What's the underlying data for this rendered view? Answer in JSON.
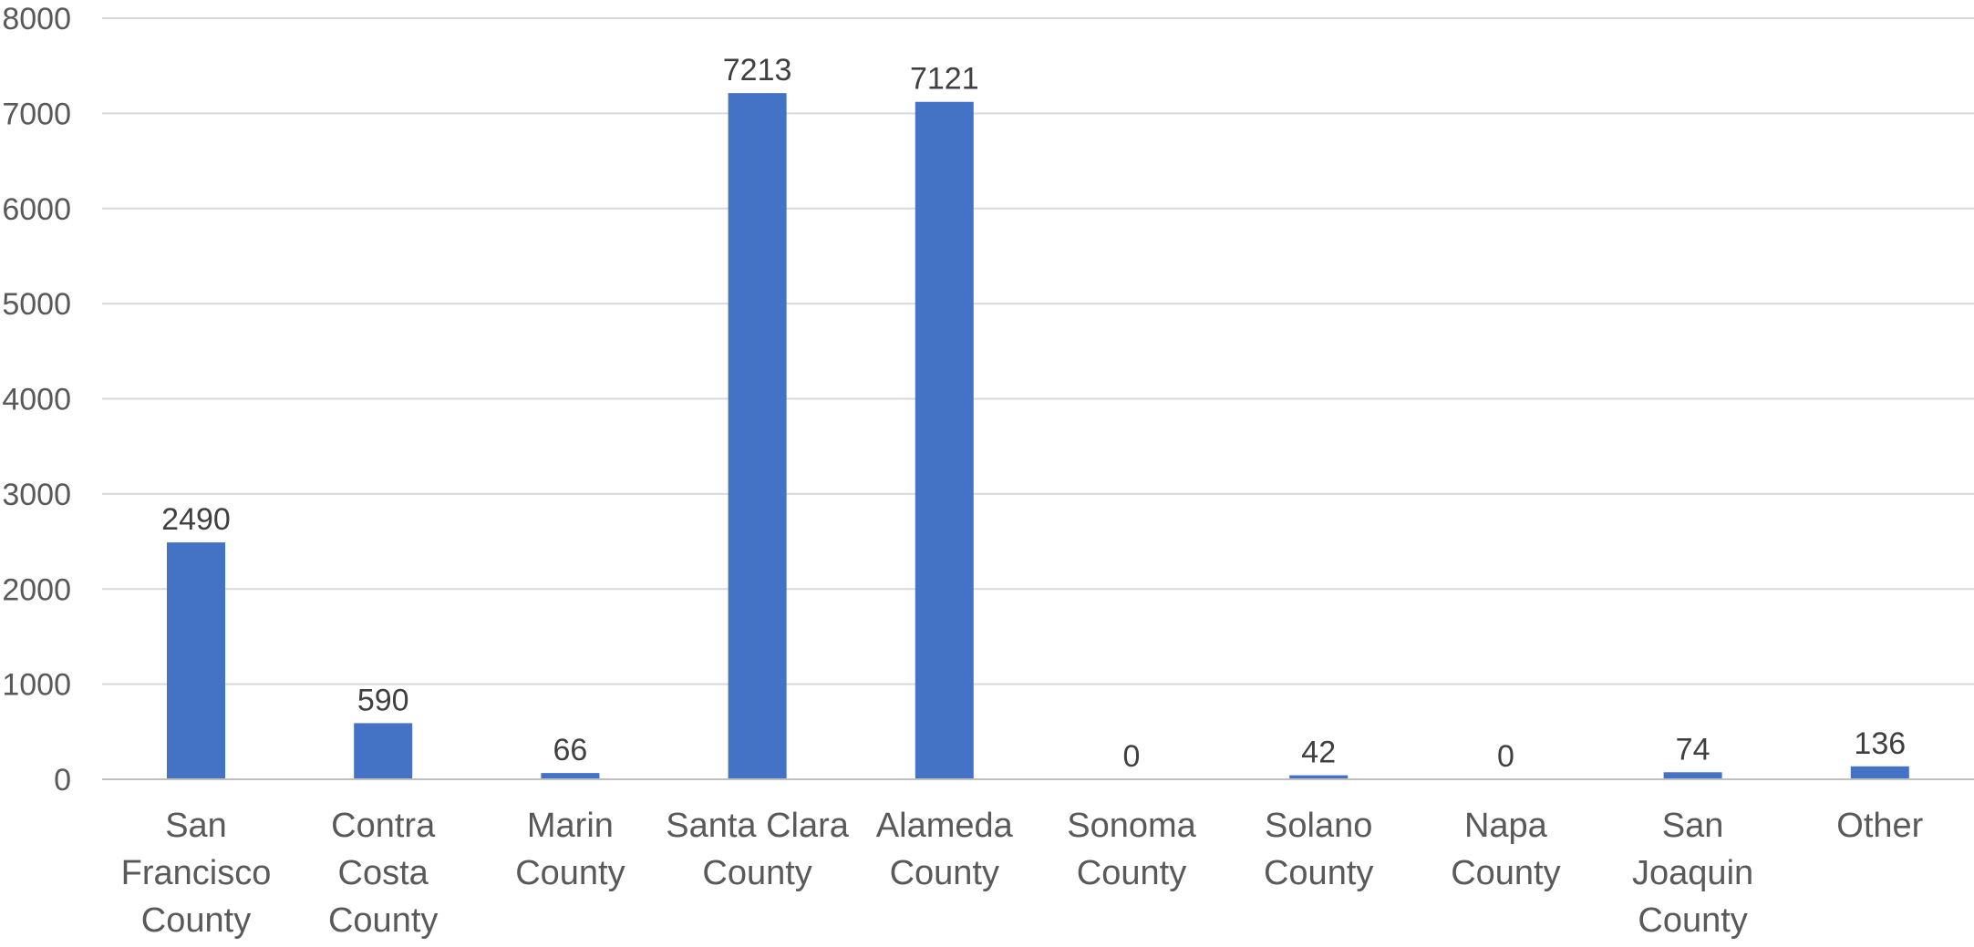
{
  "chart_data": {
    "type": "bar",
    "categories": [
      "San Francisco County",
      "Contra Costa County",
      "Marin County",
      "Santa Clara County",
      "Alameda County",
      "Sonoma County",
      "Solano County",
      "Napa County",
      "San Joaquin County",
      "Other"
    ],
    "category_lines": [
      [
        "San",
        "Francisco",
        "County"
      ],
      [
        "Contra",
        "Costa",
        "County"
      ],
      [
        "Marin",
        "County"
      ],
      [
        "Santa Clara",
        "County"
      ],
      [
        "Alameda",
        "County"
      ],
      [
        "Sonoma",
        "County"
      ],
      [
        "Solano",
        "County"
      ],
      [
        "Napa",
        "County"
      ],
      [
        "San",
        "Joaquin",
        "County"
      ],
      [
        "Other"
      ]
    ],
    "values": [
      2490,
      590,
      66,
      7213,
      7121,
      0,
      42,
      0,
      74,
      136
    ],
    "data_labels": [
      "2490",
      "590",
      "66",
      "7213",
      "7121",
      "0",
      "42",
      "0",
      "74",
      "136"
    ],
    "ylim": [
      0,
      8000
    ],
    "yticks": [
      0,
      1000,
      2000,
      3000,
      4000,
      5000,
      6000,
      7000,
      8000
    ],
    "ytick_labels": [
      "0",
      "1000",
      "2000",
      "3000",
      "4000",
      "5000",
      "6000",
      "7000",
      "8000"
    ],
    "grid": true,
    "bar_color": "#4472C4",
    "grid_color": "#D9D9D9",
    "axis_color": "#BFBFBF",
    "tick_label_color": "#595959",
    "data_label_color": "#404040"
  }
}
